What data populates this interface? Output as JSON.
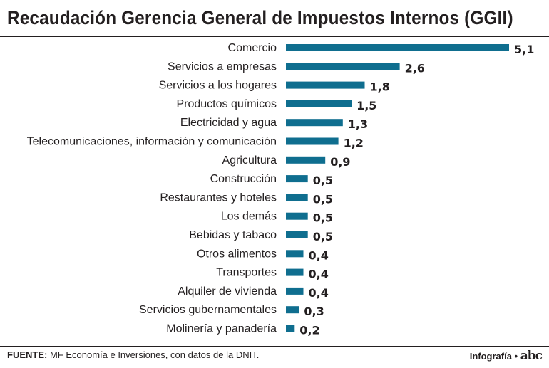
{
  "header": {
    "title": "Recaudación Gerencia General de Impuestos Internos (GGII)"
  },
  "colors": {
    "bar": "#0f6e8f",
    "text": "#231f20"
  },
  "chart_data": {
    "type": "bar",
    "orientation": "horizontal",
    "title": "Recaudación Gerencia General de Impuestos Internos (GGII)",
    "xlabel": "",
    "ylabel": "",
    "xlim": [
      0,
      5.1
    ],
    "grid": false,
    "categories": [
      "Comercio",
      "Servicios a empresas",
      "Servicios a los hogares",
      "Productos químicos",
      "Electricidad y agua",
      "Telecomunicaciones, información y comunicación",
      "Agricultura",
      "Construcción",
      "Restaurantes y hoteles",
      "Los demás",
      "Bebidas y tabaco",
      "Otros alimentos",
      "Transportes",
      "Alquiler de vivienda",
      "Servicios gubernamentales",
      "Molinería y panadería"
    ],
    "values": [
      5.1,
      2.6,
      1.8,
      1.5,
      1.3,
      1.2,
      0.9,
      0.5,
      0.5,
      0.5,
      0.5,
      0.4,
      0.4,
      0.4,
      0.3,
      0.2
    ],
    "value_labels": [
      "5,1",
      "2,6",
      "1,8",
      "1,5",
      "1,3",
      "1,2",
      "0,9",
      "0,5",
      "0,5",
      "0,5",
      "0,5",
      "0,4",
      "0,4",
      "0,4",
      "0,3",
      "0,2"
    ]
  },
  "footer": {
    "source_label": "FUENTE:",
    "source_text": " MF Economía e Inversiones, con datos de la DNIT.",
    "credit_label": "Infografía •",
    "credit_logo": "abc"
  }
}
